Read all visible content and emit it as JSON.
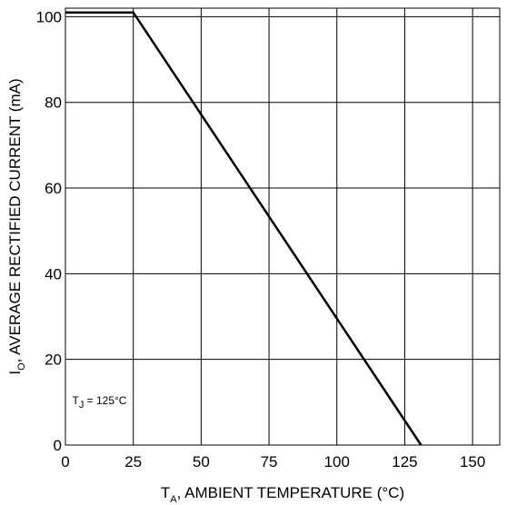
{
  "chart_data": {
    "type": "line",
    "xlabel": {
      "main": "T",
      "sub": "A",
      "rest": ",  AMBIENT TEMPERATURE (°C)"
    },
    "ylabel": {
      "main": "I",
      "sub": "O",
      "rest": ", AVERAGE RECTIFIED CURRENT (mA)"
    },
    "xlim": [
      0,
      160
    ],
    "ylim": [
      0,
      102
    ],
    "xticks": [
      0,
      25,
      50,
      75,
      100,
      125,
      150
    ],
    "yticks": [
      0,
      20,
      40,
      60,
      80,
      100
    ],
    "grid": true,
    "series": [
      {
        "x": [
          0,
          25,
          131
        ],
        "y": [
          101,
          101,
          0
        ]
      }
    ],
    "annotation": {
      "main": "T",
      "sub": "J",
      "rest": " = 125°C"
    }
  }
}
